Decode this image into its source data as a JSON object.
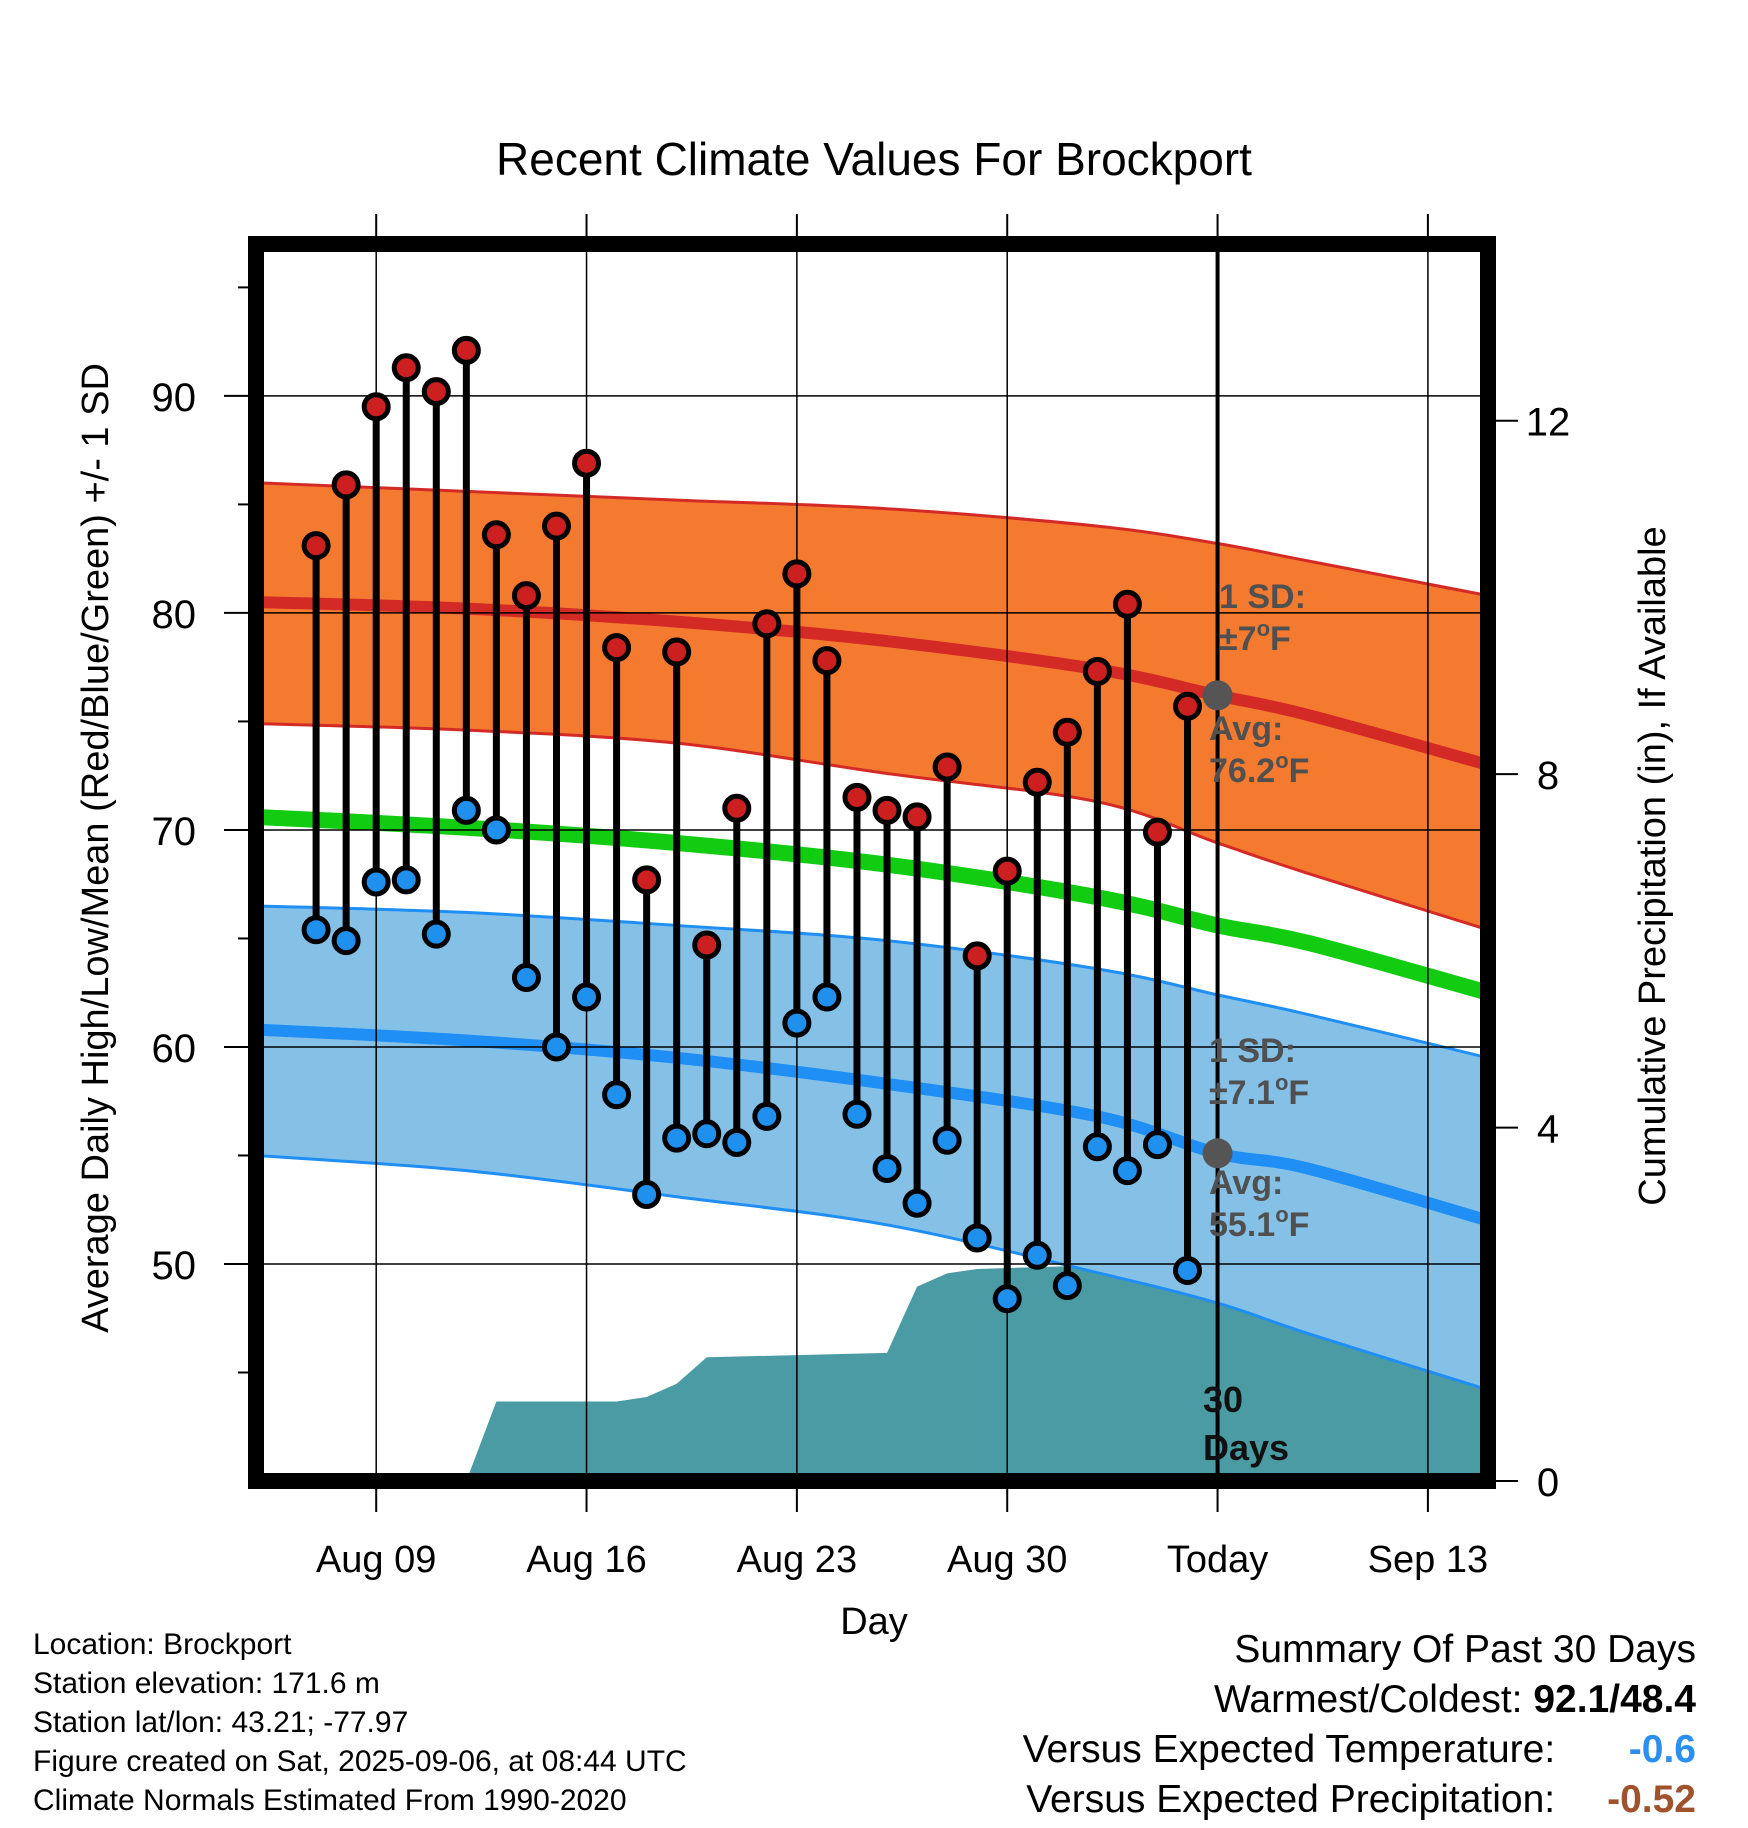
{
  "chart_data": {
    "type": "line",
    "title": "Recent Climate Values For Brockport",
    "xlabel": "Day",
    "ylabel": "Average Daily High/Low/Mean (Red/Blue/Green) +/- 1 SD",
    "y2label": "Cumulative Precipitation (in), If Available",
    "x_tick_labels": [
      "Aug 09",
      "Aug 16",
      "Aug 23",
      "Aug 30",
      "Today",
      "Sep 13"
    ],
    "x_tick_dates": [
      "2025-08-09",
      "2025-08-16",
      "2025-08-23",
      "2025-08-30",
      "2025-09-06",
      "2025-09-13"
    ],
    "xlim": [
      "2025-08-05",
      "2025-09-15"
    ],
    "ylim": [
      40,
      97
    ],
    "yticks": [
      50,
      60,
      70,
      80,
      90
    ],
    "y2lim": [
      0,
      14
    ],
    "y2ticks": [
      0,
      4,
      8,
      12
    ],
    "grid": true,
    "today": "2025-09-06",
    "dates": [
      "2025-08-07",
      "2025-08-08",
      "2025-08-09",
      "2025-08-10",
      "2025-08-11",
      "2025-08-12",
      "2025-08-13",
      "2025-08-14",
      "2025-08-15",
      "2025-08-16",
      "2025-08-17",
      "2025-08-18",
      "2025-08-19",
      "2025-08-20",
      "2025-08-21",
      "2025-08-22",
      "2025-08-23",
      "2025-08-24",
      "2025-08-25",
      "2025-08-26",
      "2025-08-27",
      "2025-08-28",
      "2025-08-29",
      "2025-08-30",
      "2025-08-31",
      "2025-09-01",
      "2025-09-02",
      "2025-09-03",
      "2025-09-04",
      "2025-09-05"
    ],
    "observed_high": [
      83.1,
      85.9,
      89.5,
      91.3,
      90.2,
      92.1,
      83.6,
      80.8,
      84.0,
      86.9,
      78.4,
      67.7,
      78.2,
      64.7,
      71.0,
      79.5,
      81.8,
      77.8,
      71.5,
      70.9,
      70.6,
      72.9,
      64.2,
      68.1,
      72.2,
      74.5,
      77.3,
      80.4,
      69.9,
      75.7
    ],
    "observed_low": [
      65.4,
      64.9,
      67.6,
      67.7,
      65.2,
      70.9,
      70.0,
      63.2,
      60.0,
      62.3,
      57.8,
      53.2,
      55.8,
      56.0,
      55.6,
      56.8,
      61.1,
      62.3,
      56.9,
      54.4,
      52.8,
      55.7,
      51.2,
      48.4,
      50.4,
      49.0,
      55.4,
      54.3,
      55.5,
      49.7
    ],
    "normal_high": {
      "dates": [
        "2025-08-05",
        "2025-08-12",
        "2025-08-19",
        "2025-08-26",
        "2025-09-02",
        "2025-09-06",
        "2025-09-09",
        "2025-09-15"
      ],
      "mean": [
        80.5,
        80.2,
        79.6,
        78.7,
        77.4,
        76.2,
        75.3,
        73.0
      ],
      "upper": [
        86.0,
        85.6,
        85.2,
        84.8,
        84.0,
        83.2,
        82.4,
        80.8
      ],
      "lower": [
        74.9,
        74.6,
        74.0,
        72.6,
        71.3,
        69.4,
        68.0,
        65.4
      ]
    },
    "normal_low": {
      "dates": [
        "2025-08-05",
        "2025-08-12",
        "2025-08-19",
        "2025-08-26",
        "2025-09-02",
        "2025-09-06",
        "2025-09-09",
        "2025-09-15"
      ],
      "mean": [
        60.8,
        60.3,
        59.5,
        58.3,
        56.8,
        55.1,
        54.4,
        52.0
      ],
      "upper": [
        66.5,
        66.2,
        65.6,
        64.9,
        63.6,
        62.4,
        61.5,
        59.5
      ],
      "lower": [
        55.0,
        54.3,
        53.1,
        51.8,
        49.6,
        48.2,
        46.8,
        44.2
      ]
    },
    "normal_mean": {
      "dates": [
        "2025-08-05",
        "2025-08-12",
        "2025-08-19",
        "2025-08-26",
        "2025-09-02",
        "2025-09-06",
        "2025-09-09",
        "2025-09-15"
      ],
      "values": [
        70.6,
        70.1,
        69.4,
        68.4,
        66.9,
        65.6,
        64.8,
        62.5
      ]
    },
    "precip_cumulative": {
      "dates": [
        "2025-08-12",
        "2025-08-13",
        "2025-08-17",
        "2025-08-18",
        "2025-08-19",
        "2025-08-20",
        "2025-08-26",
        "2025-08-27",
        "2025-08-28",
        "2025-08-29",
        "2025-09-03",
        "2025-09-04",
        "2025-09-15"
      ],
      "values": [
        0.0,
        0.9,
        0.9,
        0.95,
        1.1,
        1.4,
        1.45,
        2.2,
        2.35,
        2.4,
        2.45,
        2.65,
        2.65
      ]
    },
    "annotations": {
      "high_sd_label": "1 SD:",
      "high_sd_value": "±7",
      "high_avg_label": "Avg:",
      "high_avg_value": "76.2",
      "low_sd_label": "1 SD:",
      "low_sd_value": "±7.1",
      "low_avg_label": "Avg:",
      "low_avg_value": "55.1",
      "degree_mark": "o",
      "unit": "F",
      "days_number": "30",
      "days_word": "Days"
    },
    "colors": {
      "high_band": "#f47a30",
      "high_line": "#d42a26",
      "low_band": "#85c1e7",
      "low_line": "#1f8ff5",
      "mean_line": "#11cc11",
      "precip": "#4a9ba3",
      "high_marker": "#cc2020",
      "low_marker": "#2090ee",
      "annotation_text": "#505050"
    }
  },
  "footer": {
    "location": "Location: Brockport",
    "elevation": "Station elevation: 171.6 m",
    "latlon": "Station lat/lon: 43.21; -77.97",
    "created": "Figure created on Sat, 2025-09-06, at 08:44 UTC",
    "normals": "Climate Normals Estimated From 1990-2020"
  },
  "summary": {
    "heading": "Summary Of Past 30 Days",
    "warm_cold_label": "Warmest/Coldest:",
    "warm_cold_value": "92.1/48.4",
    "temp_label": "Versus Expected Temperature:",
    "temp_value": "-0.6",
    "temp_color": "#2a8ff0",
    "precip_label": "Versus Expected Precipitation:",
    "precip_value": "-0.52",
    "precip_color": "#a0522d"
  }
}
